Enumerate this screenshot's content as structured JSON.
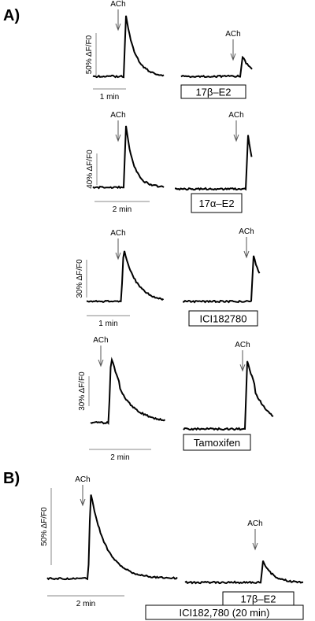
{
  "panel_a": {
    "label": "A)",
    "rows": [
      {
        "stimulus_left": "ACh",
        "stimulus_right": "ACh",
        "scale": "50% ΔF/F0",
        "time": "1 min",
        "treatment": "17β–E2"
      },
      {
        "stimulus_left": "ACh",
        "stimulus_right": "ACh",
        "scale": "40% ΔF/F0",
        "time": "2 min",
        "treatment": "17α–E2"
      },
      {
        "stimulus_left": "ACh",
        "stimulus_right": "ACh",
        "scale": "30% ΔF/F0",
        "time": "1 min",
        "treatment": "ICI182780"
      },
      {
        "stimulus_left": "ACh",
        "stimulus_right": "ACh",
        "scale": "30% ΔF/F0",
        "time": "2 min",
        "treatment": "Tamoxifen"
      }
    ]
  },
  "panel_b": {
    "label": "B)",
    "stimulus_left": "ACh",
    "stimulus_right": "ACh",
    "scale": "50% ΔF/F0",
    "time": "2 min",
    "treatments": [
      "17β–E2",
      "ICI182,780 (20 min)"
    ]
  }
}
